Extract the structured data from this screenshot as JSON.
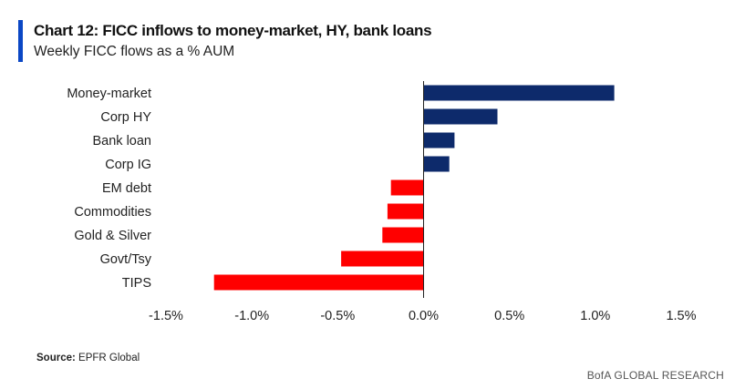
{
  "header": {
    "title": "Chart 12: FICC inflows to money-market, HY, bank loans",
    "subtitle": "Weekly FICC flows as a % AUM"
  },
  "footer": {
    "source_label": "Source:",
    "source_text": "EPFR Global",
    "credit": "BofA GLOBAL RESEARCH"
  },
  "colors": {
    "positive": "#0d2a6b",
    "negative": "#ff0000",
    "accent": "#0b47c5"
  },
  "chart_data": {
    "type": "bar",
    "orientation": "horizontal",
    "title": "Chart 12: FICC inflows to money-market, HY, bank loans",
    "subtitle": "Weekly FICC flows as a % AUM",
    "categories": [
      "Money-market",
      "Corp HY",
      "Bank loan",
      "Corp IG",
      "EM debt",
      "Commodities",
      "Gold & Silver",
      "Govt/Tsy",
      "TIPS"
    ],
    "values": [
      1.11,
      0.43,
      0.18,
      0.15,
      -0.19,
      -0.21,
      -0.24,
      -0.48,
      -1.22
    ],
    "xlim": [
      -1.5,
      1.5
    ],
    "xticks": [
      -1.5,
      -1.0,
      -0.5,
      0.0,
      0.5,
      1.0,
      1.5
    ],
    "xtick_labels": [
      "-1.5%",
      "-1.0%",
      "-0.5%",
      "0.0%",
      "0.5%",
      "1.0%",
      "1.5%"
    ],
    "grid": false,
    "legend": "none"
  }
}
